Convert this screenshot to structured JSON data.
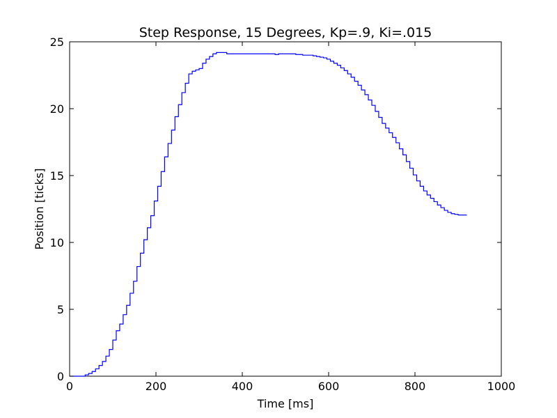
{
  "chart_data": {
    "type": "line",
    "title": "Step Response, 15 Degrees, Kp=.9, Ki=.015",
    "xlabel": "Time [ms]",
    "ylabel": "Position [ticks]",
    "xlim": [
      0,
      1000
    ],
    "ylim": [
      0,
      25
    ],
    "xticks": [
      0,
      200,
      400,
      600,
      800,
      1000
    ],
    "yticks": [
      0,
      5,
      10,
      15,
      20,
      25
    ],
    "grid": false,
    "legend": "none",
    "step": true,
    "line_color": "#0000ff",
    "series": [
      {
        "x": [
          0,
          36,
          44,
          52,
          60,
          68,
          76,
          84,
          92,
          100,
          108,
          116,
          124,
          132,
          140,
          148,
          156,
          164,
          172,
          180,
          188,
          196,
          204,
          212,
          220,
          228,
          236,
          244,
          252,
          260,
          268,
          276,
          284,
          292,
          300,
          308,
          316,
          324,
          332,
          340,
          348,
          356,
          364,
          372,
          380,
          388,
          396,
          412,
          476,
          484,
          508,
          524,
          540,
          556,
          564,
          572,
          580,
          588,
          596,
          604,
          612,
          620,
          628,
          636,
          644,
          652,
          660,
          668,
          676,
          684,
          692,
          700,
          708,
          716,
          724,
          732,
          740,
          748,
          756,
          764,
          772,
          780,
          788,
          796,
          804,
          812,
          820,
          828,
          836,
          844,
          852,
          860,
          868,
          876,
          884,
          892,
          900,
          908,
          916,
          920
        ],
        "y": [
          0,
          0.1,
          0.2,
          0.35,
          0.55,
          0.8,
          1.1,
          1.5,
          2.0,
          2.7,
          3.4,
          3.9,
          4.6,
          5.3,
          6.2,
          7.1,
          8.2,
          9.2,
          10.2,
          11.1,
          12.0,
          13.1,
          14.2,
          15.3,
          16.4,
          17.4,
          18.4,
          19.4,
          20.3,
          21.2,
          21.9,
          22.6,
          22.8,
          22.9,
          23.0,
          23.4,
          23.7,
          23.9,
          24.1,
          24.2,
          24.2,
          24.2,
          24.1,
          24.1,
          24.1,
          24.1,
          24.1,
          24.1,
          24.05,
          24.1,
          24.1,
          24.05,
          24.0,
          24.0,
          23.95,
          23.9,
          23.85,
          23.8,
          23.7,
          23.55,
          23.4,
          23.25,
          23.05,
          22.85,
          22.6,
          22.35,
          22.05,
          21.75,
          21.4,
          21.05,
          20.65,
          20.25,
          19.8,
          19.35,
          18.9,
          18.55,
          18.2,
          17.85,
          17.45,
          17.0,
          16.55,
          16.05,
          15.55,
          15.05,
          14.6,
          14.2,
          13.85,
          13.55,
          13.3,
          13.05,
          12.8,
          12.6,
          12.4,
          12.25,
          12.15,
          12.1,
          12.05,
          12.05,
          12.05,
          12.05
        ]
      }
    ]
  }
}
